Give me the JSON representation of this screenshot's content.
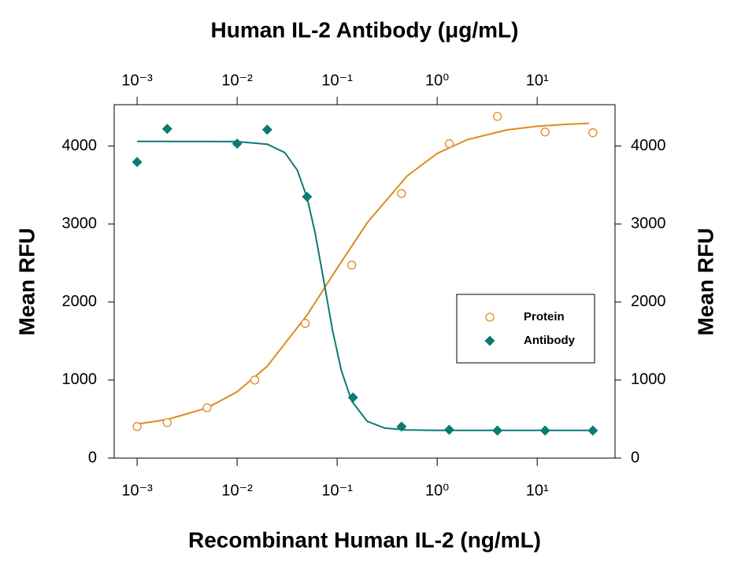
{
  "chart_data": {
    "type": "scatter",
    "title": "Human IL-2 Antibody (μg/mL)",
    "xlabel": "Recombinant Human IL-2 (ng/mL)",
    "ylabel": "Mean RFU",
    "y2label": "Mean RFU",
    "xscale": "log",
    "xlim": [
      0.00059,
      60
    ],
    "xticks": [
      {
        "value": 0.001,
        "label": "10⁻³"
      },
      {
        "value": 0.01,
        "label": "10⁻²"
      },
      {
        "value": 0.1,
        "label": "10⁻¹"
      },
      {
        "value": 1,
        "label": "10⁰"
      },
      {
        "value": 10,
        "label": "10¹"
      }
    ],
    "x2lim": [
      0.00059,
      60
    ],
    "x2ticks": [
      {
        "value": 0.001,
        "label": "10⁻³"
      },
      {
        "value": 0.01,
        "label": "10⁻²"
      },
      {
        "value": 0.1,
        "label": "10⁻¹"
      },
      {
        "value": 1,
        "label": "10⁰"
      },
      {
        "value": 10,
        "label": "10¹"
      }
    ],
    "ylim": [
      0,
      4530
    ],
    "yticks": [
      0,
      1000,
      2000,
      3000,
      4000
    ],
    "y2lim": [
      0,
      4530
    ],
    "y2ticks": [
      0,
      1000,
      2000,
      3000,
      4000
    ],
    "legend": "right",
    "series": [
      {
        "name": "Protein",
        "color": "#e08a1e",
        "marker": "circle",
        "x": [
          0.001,
          0.002,
          0.005,
          0.015,
          0.048,
          0.14,
          0.44,
          1.32,
          4.0,
          12,
          36
        ],
        "values": [
          404,
          455,
          646,
          1000,
          1727,
          2474,
          3392,
          4030,
          4380,
          4180,
          4170
        ],
        "fit": {
          "x": [
            0.001,
            0.002,
            0.005,
            0.01,
            0.02,
            0.05,
            0.1,
            0.2,
            0.5,
            1,
            2,
            5,
            10,
            20,
            33
          ],
          "values": [
            437,
            494,
            643,
            849,
            1178,
            1832,
            2433,
            3018,
            3616,
            3904,
            4082,
            4207,
            4254,
            4279,
            4290
          ]
        }
      },
      {
        "name": "Antibody",
        "color": "#0b7b73",
        "marker": "diamond",
        "x": [
          0.001,
          0.002,
          0.01,
          0.02,
          0.05,
          0.144,
          0.44,
          1.32,
          4.0,
          12,
          36
        ],
        "values": [
          3795,
          4220,
          4030,
          4210,
          3350,
          777,
          404,
          363,
          353,
          353,
          353
        ],
        "fit": {
          "x": [
            0.001,
            0.01,
            0.02,
            0.03,
            0.04,
            0.05,
            0.06,
            0.075,
            0.09,
            0.11,
            0.14,
            0.2,
            0.3,
            0.5,
            1,
            33
          ],
          "values": [
            4060,
            4057,
            4024,
            3916,
            3690,
            3338,
            2896,
            2208,
            1637,
            1124,
            730,
            471,
            384,
            360,
            356,
            355
          ]
        }
      }
    ]
  }
}
